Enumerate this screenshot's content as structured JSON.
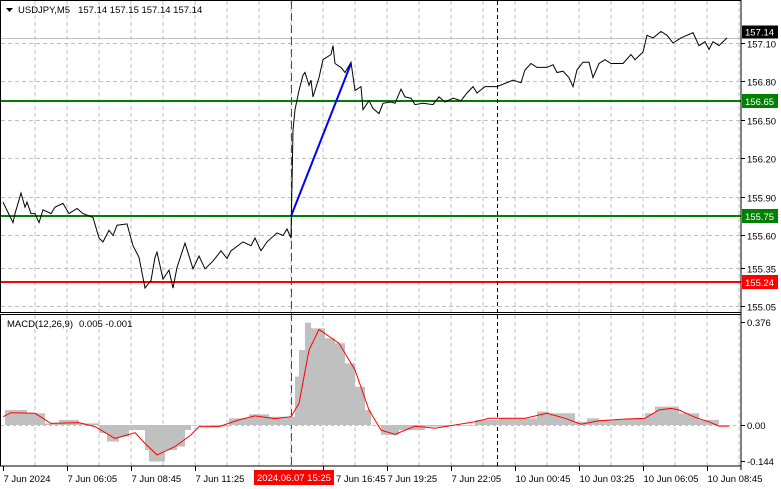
{
  "header": {
    "symbol": "USDJPY,M5",
    "ohlc": "157.14 157.15 157.14 157.14",
    "menu_icon": "triangle-down-icon"
  },
  "chart_data": [
    {
      "type": "line",
      "title": "USDJPY,M5",
      "grid": true,
      "ylim": [
        155.0,
        157.2
      ],
      "y_ticks": [
        "157.10",
        "156.80",
        "156.50",
        "156.20",
        "155.90",
        "155.60",
        "155.35",
        "155.05"
      ],
      "series": [
        {
          "color": "#000000",
          "points": [
            [
              "7 Jun 03:25",
              155.86
            ],
            [
              "7 Jun 03:50",
              155.7
            ],
            [
              "7 Jun 03:55",
              155.77
            ],
            [
              "7 Jun 04:10",
              155.93
            ],
            [
              "7 Jun 04:20",
              155.82
            ],
            [
              "7 Jun 04:25",
              155.86
            ],
            [
              "7 Jun 04:35",
              155.77
            ],
            [
              "7 Jun 04:45",
              155.77
            ],
            [
              "7 Jun 04:55",
              155.7
            ],
            [
              "7 Jun 05:05",
              155.8
            ],
            [
              "7 Jun 05:25",
              155.77
            ],
            [
              "7 Jun 05:35",
              155.82
            ],
            [
              "7 Jun 05:55",
              155.85
            ],
            [
              "7 Jun 06:10",
              155.77
            ],
            [
              "7 Jun 06:30",
              155.81
            ],
            [
              "7 Jun 06:45",
              155.77
            ],
            [
              "7 Jun 07:10",
              155.74
            ],
            [
              "7 Jun 07:25",
              155.58
            ],
            [
              "7 Jun 07:35",
              155.55
            ],
            [
              "7 Jun 07:50",
              155.64
            ],
            [
              "7 Jun 08:00",
              155.6
            ],
            [
              "7 Jun 08:10",
              155.68
            ],
            [
              "7 Jun 08:35",
              155.69
            ],
            [
              "7 Jun 08:50",
              155.52
            ],
            [
              "7 Jun 09:05",
              155.43
            ],
            [
              "7 Jun 09:20",
              155.19
            ],
            [
              "7 Jun 09:35",
              155.25
            ],
            [
              "7 Jun 09:45",
              155.43
            ],
            [
              "7 Jun 09:50",
              155.47
            ],
            [
              "7 Jun 10:05",
              155.26
            ],
            [
              "7 Jun 10:20",
              155.33
            ],
            [
              "7 Jun 10:30",
              155.19
            ],
            [
              "7 Jun 10:40",
              155.35
            ],
            [
              "7 Jun 11:00",
              155.54
            ],
            [
              "7 Jun 11:20",
              155.34
            ],
            [
              "7 Jun 11:35",
              155.44
            ],
            [
              "7 Jun 11:50",
              155.34
            ],
            [
              "7 Jun 12:10",
              155.4
            ],
            [
              "7 Jun 12:30",
              155.48
            ],
            [
              "7 Jun 12:45",
              155.42
            ],
            [
              "7 Jun 12:55",
              155.48
            ],
            [
              "7 Jun 13:25",
              155.55
            ],
            [
              "7 Jun 13:45",
              155.52
            ],
            [
              "7 Jun 13:55",
              155.58
            ],
            [
              "7 Jun 14:10",
              155.48
            ],
            [
              "7 Jun 14:25",
              155.55
            ],
            [
              "7 Jun 14:50",
              155.62
            ],
            [
              "7 Jun 15:05",
              155.6
            ],
            [
              "7 Jun 15:15",
              155.65
            ],
            [
              "7 Jun 15:25",
              155.58
            ],
            [
              "7 Jun 15:30",
              156.42
            ],
            [
              "7 Jun 15:35",
              156.58
            ],
            [
              "7 Jun 15:45",
              156.73
            ],
            [
              "7 Jun 15:55",
              156.85
            ],
            [
              "7 Jun 16:00",
              156.87
            ],
            [
              "7 Jun 16:10",
              156.77
            ],
            [
              "7 Jun 16:15",
              156.81
            ],
            [
              "7 Jun 16:20",
              156.68
            ],
            [
              "7 Jun 16:35",
              156.83
            ],
            [
              "7 Jun 16:45",
              156.97
            ],
            [
              "7 Jun 17:05",
              157.01
            ],
            [
              "7 Jun 17:10",
              157.08
            ],
            [
              "7 Jun 17:15",
              156.94
            ],
            [
              "7 Jun 17:30",
              156.91
            ],
            [
              "7 Jun 17:40",
              156.87
            ],
            [
              "7 Jun 17:55",
              156.95
            ],
            [
              "7 Jun 18:05",
              156.73
            ],
            [
              "7 Jun 18:20",
              156.76
            ],
            [
              "7 Jun 18:25",
              156.58
            ],
            [
              "7 Jun 18:40",
              156.65
            ],
            [
              "7 Jun 18:50",
              156.59
            ],
            [
              "7 Jun 19:05",
              156.55
            ],
            [
              "7 Jun 19:15",
              156.63
            ],
            [
              "7 Jun 19:35",
              156.64
            ],
            [
              "7 Jun 19:45",
              156.63
            ],
            [
              "7 Jun 20:00",
              156.74
            ],
            [
              "7 Jun 20:10",
              156.68
            ],
            [
              "7 Jun 20:25",
              156.67
            ],
            [
              "7 Jun 20:35",
              156.62
            ],
            [
              "7 Jun 20:55",
              156.63
            ],
            [
              "7 Jun 21:20",
              156.62
            ],
            [
              "7 Jun 21:35",
              156.68
            ],
            [
              "7 Jun 21:50",
              156.64
            ],
            [
              "7 Jun 22:10",
              156.67
            ],
            [
              "7 Jun 22:30",
              156.65
            ],
            [
              "7 Jun 22:45",
              156.71
            ],
            [
              "7 Jun 23:00",
              156.76
            ],
            [
              "7 Jun 23:10",
              156.71
            ],
            [
              "7 Jun 23:30",
              156.76
            ],
            [
              "10 Jun 00:00",
              156.76
            ],
            [
              "10 Jun 00:40",
              156.81
            ],
            [
              "10 Jun 01:00",
              156.79
            ],
            [
              "10 Jun 01:10",
              156.89
            ],
            [
              "10 Jun 01:25",
              156.94
            ],
            [
              "10 Jun 01:40",
              156.91
            ],
            [
              "10 Jun 02:05",
              156.91
            ],
            [
              "10 Jun 02:20",
              156.93
            ],
            [
              "10 Jun 02:30",
              156.87
            ],
            [
              "10 Jun 02:45",
              156.88
            ],
            [
              "10 Jun 03:00",
              156.83
            ],
            [
              "10 Jun 03:10",
              156.76
            ],
            [
              "10 Jun 03:20",
              156.89
            ],
            [
              "10 Jun 03:35",
              156.95
            ],
            [
              "10 Jun 03:50",
              156.95
            ],
            [
              "10 Jun 04:00",
              156.83
            ],
            [
              "10 Jun 04:15",
              156.94
            ],
            [
              "10 Jun 04:30",
              156.97
            ],
            [
              "10 Jun 04:45",
              156.94
            ],
            [
              "10 Jun 05:00",
              156.94
            ],
            [
              "10 Jun 05:15",
              156.94
            ],
            [
              "10 Jun 05:35",
              157.01
            ],
            [
              "10 Jun 05:45",
              156.97
            ],
            [
              "10 Jun 06:05",
              157.03
            ],
            [
              "10 Jun 06:15",
              157.16
            ],
            [
              "10 Jun 06:30",
              157.14
            ],
            [
              "10 Jun 06:50",
              157.19
            ],
            [
              "10 Jun 07:05",
              157.16
            ],
            [
              "10 Jun 07:20",
              157.1
            ],
            [
              "10 Jun 07:40",
              157.14
            ],
            [
              "10 Jun 08:10",
              157.18
            ],
            [
              "10 Jun 08:25",
              157.08
            ],
            [
              "10 Jun 08:40",
              157.11
            ],
            [
              "10 Jun 08:50",
              157.05
            ],
            [
              "10 Jun 09:00",
              157.11
            ],
            [
              "10 Jun 09:15",
              157.08
            ],
            [
              "10 Jun 09:35",
              157.14
            ]
          ]
        }
      ],
      "current_price": {
        "value": 157.14,
        "label": "157.14",
        "color": "#000000"
      },
      "horizontal_lines": [
        {
          "value": 156.65,
          "label": "156.65",
          "color": "#008000"
        },
        {
          "value": 155.75,
          "label": "155.75",
          "color": "#008000"
        },
        {
          "value": 155.24,
          "label": "155.24",
          "color": "#ff0000"
        }
      ],
      "trend_line": {
        "from": [
          "7 Jun 15:25",
          155.75
        ],
        "to": [
          "7 Jun 17:55",
          156.94
        ],
        "color": "#0000ff"
      }
    },
    {
      "type": "bar",
      "title": "MACD(12,26,9)",
      "values_label": "0.005 -0.001",
      "ylim": [
        -0.144,
        0.376
      ],
      "y_ticks": [
        "0.376",
        "0.00",
        "-0.144"
      ],
      "histogram": {
        "color": "#c0c0c0",
        "points": [
          [
            "7 Jun 03:30",
            0.056
          ],
          [
            "7 Jun 04:25",
            0.044
          ],
          [
            "7 Jun 05:10",
            0.006
          ],
          [
            "7 Jun 05:45",
            0.019
          ],
          [
            "7 Jun 06:35",
            0.006
          ],
          [
            "7 Jun 07:25",
            -0.03
          ],
          [
            "7 Jun 07:45",
            -0.062
          ],
          [
            "7 Jun 08:15",
            -0.044
          ],
          [
            "7 Jun 08:40",
            -0.019
          ],
          [
            "7 Jun 09:20",
            -0.094
          ],
          [
            "7 Jun 09:30",
            -0.137
          ],
          [
            "7 Jun 10:10",
            -0.094
          ],
          [
            "7 Jun 10:40",
            -0.081
          ],
          [
            "7 Jun 11:00",
            -0.019
          ],
          [
            "7 Jun 11:15",
            0
          ],
          [
            "7 Jun 12:00",
            -0.006
          ],
          [
            "7 Jun 12:50",
            0.025
          ],
          [
            "7 Jun 13:40",
            0.04
          ],
          [
            "7 Jun 14:30",
            0.031
          ],
          [
            "7 Jun 15:20",
            0.031
          ],
          [
            "7 Jun 15:35",
            0.181
          ],
          [
            "7 Jun 15:45",
            0.281
          ],
          [
            "7 Jun 16:00",
            0.383
          ],
          [
            "7 Jun 16:15",
            0.362
          ],
          [
            "7 Jun 16:50",
            0.325
          ],
          [
            "7 Jun 17:15",
            0.306
          ],
          [
            "7 Jun 17:40",
            0.231
          ],
          [
            "7 Jun 18:05",
            0.143
          ],
          [
            "7 Jun 18:30",
            0.056
          ],
          [
            "7 Jun 18:45",
            0
          ],
          [
            "7 Jun 19:10",
            -0.037
          ],
          [
            "7 Jun 19:55",
            -0.019
          ],
          [
            "7 Jun 21:00",
            -0.006
          ],
          [
            "7 Jun 22:00",
            0
          ],
          [
            "7 Jun 23:05",
            0.019
          ],
          [
            "10 Jun 00:05",
            0.025
          ],
          [
            "10 Jun 01:10",
            0.025
          ],
          [
            "10 Jun 01:40",
            0.05
          ],
          [
            "10 Jun 02:10",
            0.044
          ],
          [
            "10 Jun 03:15",
            0.012
          ],
          [
            "10 Jun 03:45",
            0.025
          ],
          [
            "10 Jun 04:15",
            0.019
          ],
          [
            "10 Jun 05:20",
            0.025
          ],
          [
            "10 Jun 06:10",
            0.044
          ],
          [
            "10 Jun 06:35",
            0.069
          ],
          [
            "10 Jun 07:00",
            0.069
          ],
          [
            "10 Jun 07:35",
            0.044
          ],
          [
            "10 Jun 08:25",
            0.019
          ],
          [
            "10 Jun 09:15",
            0
          ],
          [
            "10 Jun 09:40",
            0
          ]
        ]
      },
      "signal": {
        "color": "#ff0000",
        "points": [
          [
            "7 Jun 03:25",
            0.031
          ],
          [
            "7 Jun 03:45",
            0.046
          ],
          [
            "7 Jun 04:45",
            0.044
          ],
          [
            "7 Jun 05:25",
            0.006
          ],
          [
            "7 Jun 06:35",
            0.009
          ],
          [
            "7 Jun 07:15",
            -0.006
          ],
          [
            "7 Jun 08:05",
            -0.05
          ],
          [
            "7 Jun 08:55",
            -0.029
          ],
          [
            "7 Jun 09:20",
            -0.069
          ],
          [
            "7 Jun 09:50",
            -0.112
          ],
          [
            "7 Jun 10:35",
            -0.081
          ],
          [
            "7 Jun 11:15",
            -0.037
          ],
          [
            "7 Jun 11:35",
            -0.006
          ],
          [
            "7 Jun 12:25",
            -0.006
          ],
          [
            "7 Jun 13:15",
            0.019
          ],
          [
            "7 Jun 13:55",
            0.034
          ],
          [
            "7 Jun 14:45",
            0.024
          ],
          [
            "7 Jun 15:25",
            0.031
          ],
          [
            "7 Jun 15:45",
            0.081
          ],
          [
            "7 Jun 16:10",
            0.281
          ],
          [
            "7 Jun 16:35",
            0.358
          ],
          [
            "7 Jun 17:25",
            0.306
          ],
          [
            "7 Jun 18:05",
            0.206
          ],
          [
            "7 Jun 18:40",
            0.056
          ],
          [
            "7 Jun 19:10",
            -0.019
          ],
          [
            "7 Jun 19:45",
            -0.035
          ],
          [
            "7 Jun 20:35",
            -0.004
          ],
          [
            "7 Jun 21:25",
            -0.012
          ],
          [
            "7 Jun 22:15",
            0
          ],
          [
            "7 Jun 23:05",
            0.012
          ],
          [
            "7 Jun 23:40",
            0.025
          ],
          [
            "10 Jun 01:10",
            0.025
          ],
          [
            "10 Jun 02:05",
            0.044
          ],
          [
            "10 Jun 02:50",
            0.025
          ],
          [
            "10 Jun 03:30",
            0.003
          ],
          [
            "10 Jun 04:15",
            0.016
          ],
          [
            "10 Jun 05:20",
            0.022
          ],
          [
            "10 Jun 06:10",
            0.025
          ],
          [
            "10 Jun 06:45",
            0.056
          ],
          [
            "10 Jun 07:15",
            0.062
          ],
          [
            "10 Jun 07:35",
            0.056
          ],
          [
            "10 Jun 08:15",
            0.029
          ],
          [
            "10 Jun 08:50",
            0.012
          ],
          [
            "10 Jun 09:15",
            -0.004
          ],
          [
            "10 Jun 09:40",
            -0.004
          ]
        ]
      }
    }
  ],
  "time_axis": {
    "labels": [
      [
        "7 Jun 03:25",
        "7 Jun 2024"
      ],
      [
        "7 Jun 06:05",
        "7 Jun 06:05"
      ],
      [
        "7 Jun 08:45",
        "7 Jun 08:45"
      ],
      [
        "7 Jun 11:25",
        "7 Jun 11:25"
      ],
      [
        "7 Jun 16:45",
        "7 Jun 16:45"
      ],
      [
        "7 Jun 19:25",
        "7 Jun 19:25"
      ],
      [
        "7 Jun 22:05",
        "7 Jun 22:05"
      ],
      [
        "10 Jun 00:45",
        "10 Jun 00:45"
      ],
      [
        "10 Jun 03:25",
        "10 Jun 03:25"
      ],
      [
        "10 Jun 06:05",
        "10 Jun 06:05"
      ],
      [
        "10 Jun 08:45",
        "10 Jun 08:45"
      ]
    ],
    "cursor_time": "7 Jun 15:25",
    "cursor_label": "2024.06.07 15:25",
    "cursor_color": "#ff0000",
    "day_separator": "10 Jun 00:00"
  }
}
